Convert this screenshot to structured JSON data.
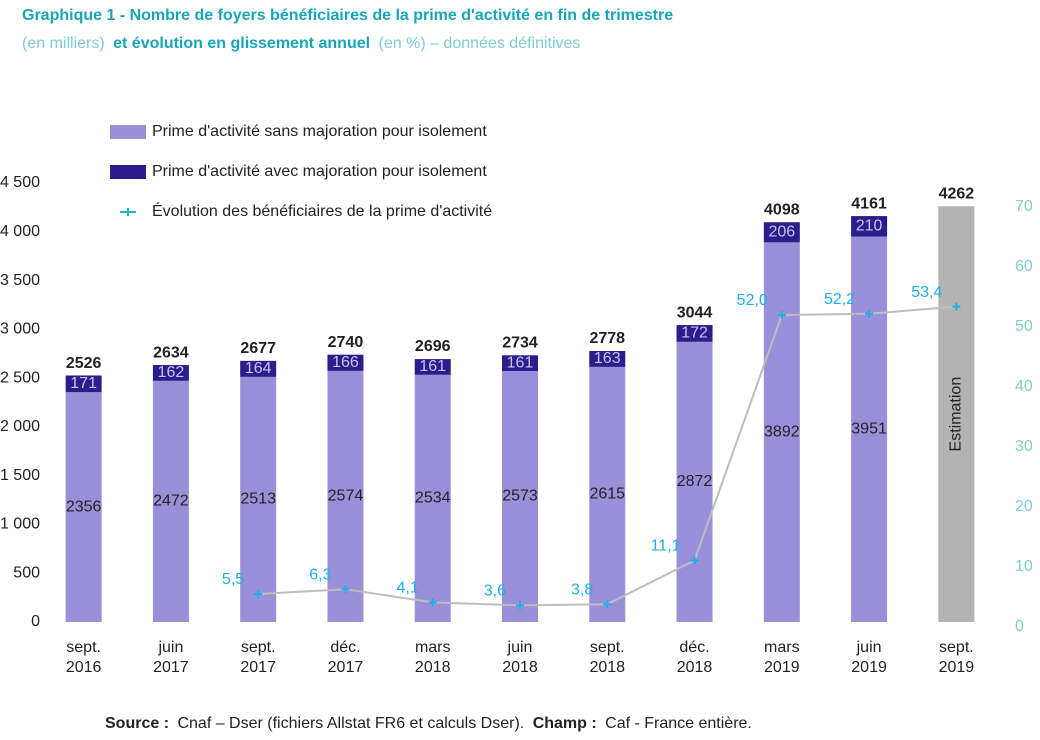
{
  "chart_data": {
    "type": "bar",
    "title": "Graphique 1 - Nombre de foyers bénéficiaires de la prime d'activité en fin de trimestre",
    "subtitle_parts": [
      "(en milliers)",
      "et évolution en glissement annuel",
      "(en %) – données définitives"
    ],
    "categories": [
      "sept. 2016",
      "juin 2017",
      "sept. 2017",
      "déc. 2017",
      "mars 2018",
      "juin 2018",
      "sept. 2018",
      "déc. 2018",
      "mars 2019",
      "juin 2019",
      "sept. 2019"
    ],
    "series": [
      {
        "name": "Prime d'activité sans majoration pour isolement",
        "color": "#9a8fd9",
        "values": [
          2356,
          2472,
          2513,
          2574,
          2534,
          2573,
          2615,
          2872,
          3892,
          3951,
          null
        ]
      },
      {
        "name": "Prime d'activité avec majoration pour isolement",
        "color": "#2b1e8c",
        "values": [
          171,
          162,
          164,
          166,
          161,
          161,
          163,
          172,
          206,
          210,
          null
        ]
      },
      {
        "name": "Évolution des bénéficiaires de la prime d'activité",
        "type": "line",
        "axis": "y2",
        "color": "#1bb1e6",
        "line_color": "#bdbdbd",
        "values": [
          null,
          null,
          5.5,
          6.3,
          4.1,
          3.6,
          3.8,
          11.1,
          52.0,
          52.2,
          53.4
        ],
        "value_labels": [
          null,
          null,
          "5,5",
          "6,3",
          "4,1",
          "3,6",
          "3,8",
          "11,1",
          "52,0",
          "52,2",
          "53,4"
        ]
      }
    ],
    "totals": [
      2526,
      2634,
      2677,
      2740,
      2696,
      2734,
      2778,
      3044,
      4098,
      4161,
      4262
    ],
    "estimate": {
      "label": "Estimation",
      "color": "#b3b3b3"
    },
    "ylim": [
      0,
      4500
    ],
    "yticks": [
      0,
      500,
      {
        "value": 1000,
        "label": "1 000"
      },
      {
        "value": 1500,
        "label": "1 500"
      },
      {
        "value": 2000,
        "label": "2 000"
      },
      {
        "value": 2500,
        "label": "2 500"
      },
      {
        "value": 3000,
        "label": "3 000"
      },
      {
        "value": 3500,
        "label": "3 500"
      },
      {
        "value": 4000,
        "label": "4 000"
      },
      {
        "value": 4500,
        "label": "4 500"
      }
    ],
    "y2lim": [
      0,
      74
    ],
    "y2ticks": [
      0,
      10,
      20,
      30,
      40,
      50,
      60,
      70
    ],
    "grid": false,
    "legend": "top-left",
    "note_parts": [
      "Source :",
      "Cnaf – Dser (fichiers Allstat FR6 et calculs Dser).",
      "Champ :",
      "Caf - France entière."
    ]
  }
}
